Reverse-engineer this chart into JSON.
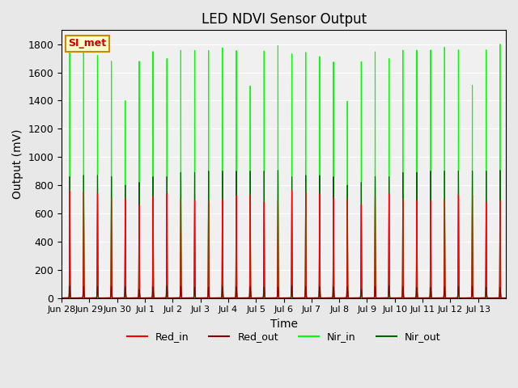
{
  "title": "LED NDVI Sensor Output",
  "xlabel": "Time",
  "ylabel": "Output (mV)",
  "ylim": [
    0,
    1900
  ],
  "yticks": [
    0,
    200,
    400,
    600,
    800,
    1000,
    1200,
    1400,
    1600,
    1800
  ],
  "background_color": "#e8e8e8",
  "plot_bg_color": "#f0f0f0",
  "legend_entries": [
    "Red_in",
    "Red_out",
    "Nir_in",
    "Nir_out"
  ],
  "legend_colors": [
    "#ff0000",
    "#8b0000",
    "#00ff00",
    "#006400"
  ],
  "annotation_text": "SI_met",
  "annotation_bg": "#ffffcc",
  "annotation_border": "#cc8800",
  "annotation_text_color": "#cc0000",
  "num_days": 16,
  "tick_labels": [
    "Jun 28",
    "Jun 29",
    "Jun 30",
    "Jul 1",
    "Jul 2",
    "Jul 3",
    "Jul 4",
    "Jul 5",
    "Jul 6",
    "Jul 7",
    "Jul 8",
    "Jul 9",
    "Jul 10",
    "Jul 11",
    "Jul 12",
    "Jul 13"
  ],
  "title_fontsize": 12,
  "axis_label_fontsize": 10,
  "red_in_peaks": [
    760,
    750,
    740,
    710,
    700,
    660,
    720,
    740,
    700,
    690,
    690,
    700,
    730,
    730,
    680,
    690,
    760,
    750,
    740,
    710,
    700,
    660,
    720,
    740,
    700,
    690,
    690,
    700,
    730,
    730,
    680,
    690
  ],
  "red_out_peaks": [
    85,
    80,
    80,
    80,
    80,
    60,
    80,
    85,
    80,
    75,
    75,
    80,
    80,
    80,
    75,
    75,
    85,
    80,
    80,
    80,
    80,
    60,
    80,
    85,
    80,
    75,
    75,
    80,
    80,
    80,
    75,
    75
  ],
  "nir_in_peaks": [
    1740,
    1750,
    1720,
    1680,
    1400,
    1680,
    1750,
    1700,
    1760,
    1760,
    1760,
    1780,
    1760,
    1510,
    1760,
    1800,
    1740,
    1750,
    1720,
    1680,
    1400,
    1680,
    1750,
    1700,
    1760,
    1760,
    1760,
    1780,
    1760,
    1510,
    1760,
    1800
  ],
  "nir_out_peaks": [
    860,
    870,
    870,
    860,
    800,
    820,
    860,
    860,
    890,
    890,
    900,
    900,
    900,
    900,
    900,
    905,
    860,
    870,
    870,
    860,
    800,
    820,
    860,
    860,
    890,
    890,
    900,
    900,
    900,
    900,
    900,
    905
  ]
}
